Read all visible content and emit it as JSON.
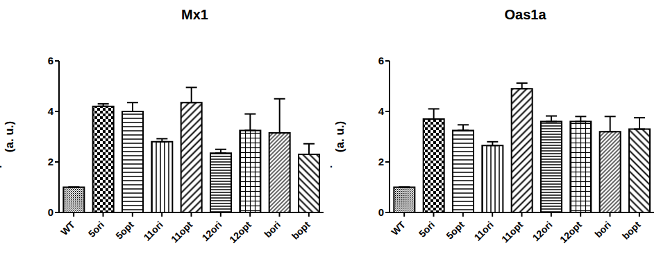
{
  "chart_data": [
    {
      "type": "bar",
      "title": "Mx1",
      "categories": [
        "WT",
        "5ori",
        "5opt",
        "11ori",
        "11opt",
        "12ori",
        "12opt",
        "bori",
        "bopt"
      ],
      "values": [
        1,
        4.2,
        4.0,
        2.8,
        4.35,
        2.35,
        3.25,
        3.15,
        2.3
      ],
      "errors": [
        0,
        0.1,
        0.35,
        0.12,
        0.6,
        0.15,
        0.65,
        1.35,
        0.42
      ],
      "ylim": [
        0,
        6
      ],
      "yticks": [
        0,
        2,
        4,
        6
      ],
      "y_label": [
        "Expression ratio",
        "(a. u.)"
      ],
      "color": "#000000"
    },
    {
      "type": "bar",
      "title": "Oas1a",
      "categories": [
        "WT",
        "5ori",
        "5opt",
        "11ori",
        "11opt",
        "12ori",
        "12opt",
        "bori",
        "bopt"
      ],
      "values": [
        1,
        3.7,
        3.25,
        2.65,
        4.9,
        3.6,
        3.6,
        3.2,
        3.3
      ],
      "errors": [
        0,
        0.4,
        0.22,
        0.15,
        0.22,
        0.22,
        0.2,
        0.6,
        0.45
      ],
      "ylim": [
        0,
        6
      ],
      "yticks": [
        0,
        2,
        4,
        6
      ],
      "y_label": [
        "Expression ratio",
        "(a. u.)"
      ],
      "color": "#000000"
    }
  ]
}
